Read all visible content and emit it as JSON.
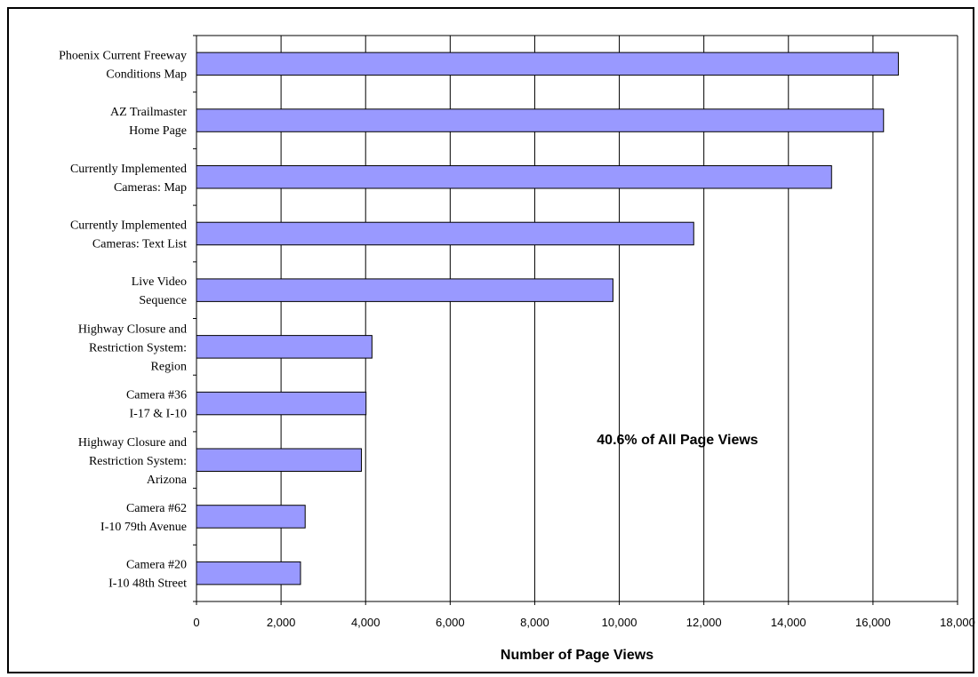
{
  "chart_data": {
    "type": "bar",
    "orientation": "horizontal",
    "title": "",
    "xlabel": "Number of Page Views",
    "ylabel": "",
    "xlim": [
      0,
      18000
    ],
    "x_ticks": [
      0,
      2000,
      4000,
      6000,
      8000,
      10000,
      12000,
      14000,
      16000,
      18000
    ],
    "x_tick_labels": [
      "0",
      "2,000",
      "4,000",
      "6,000",
      "8,000",
      "10,000",
      "12,000",
      "14,000",
      "16,000",
      "18,000"
    ],
    "grid": "vertical",
    "bar_color": "#9999ff",
    "categories": [
      [
        "Phoenix Current Freeway",
        "Conditions Map"
      ],
      [
        "AZ Trailmaster",
        "Home Page"
      ],
      [
        "Currently Implemented",
        "Cameras: Map"
      ],
      [
        "Currently Implemented",
        "Cameras: Text List"
      ],
      [
        "Live Video",
        "Sequence"
      ],
      [
        "Highway Closure and",
        "Restriction System:",
        "Region"
      ],
      [
        "Camera #36",
        "I-17 & I-10"
      ],
      [
        "Highway Closure and",
        "Restriction System:",
        "Arizona"
      ],
      [
        "Camera #62",
        "I-10 79th Avenue"
      ],
      [
        "Camera #20",
        "I-10 48th Street"
      ]
    ],
    "values": [
      16600,
      16250,
      15020,
      11760,
      9850,
      4150,
      4010,
      3900,
      2570,
      2460
    ],
    "annotation": "40.6% of All Page Views"
  }
}
